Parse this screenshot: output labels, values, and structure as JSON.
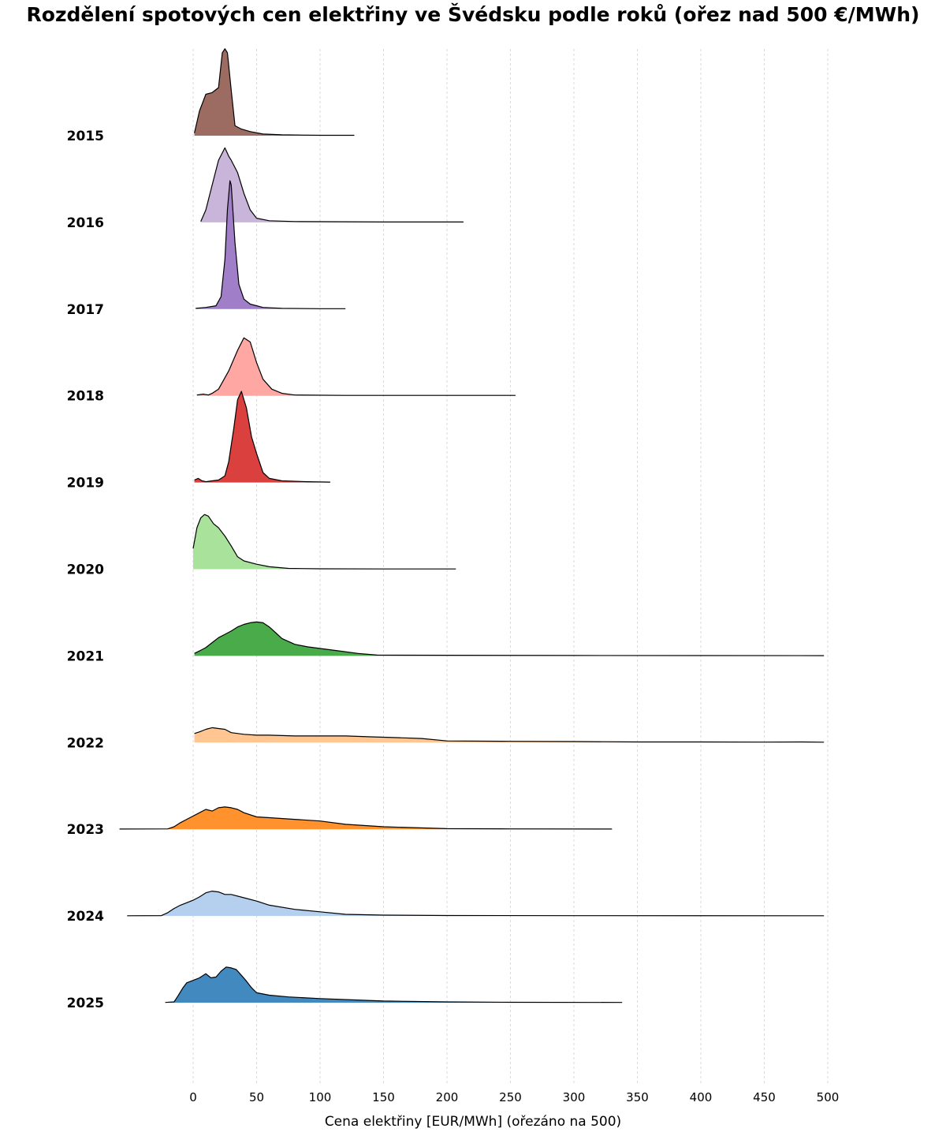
{
  "chart_data": {
    "type": "area",
    "title": "Rozdělení spotových cen elektřiny ve Švédsku podle roků (ořez nad 500 €/MWh)",
    "xlabel": "Cena elektřiny [EUR/MWh] (ořezáno na 500)",
    "ylabel": "",
    "xlim": [
      -60,
      500
    ],
    "xticks": [
      0,
      50,
      100,
      150,
      200,
      250,
      300,
      350,
      400,
      450,
      500
    ],
    "grid": "vertical dotted",
    "series": [
      {
        "name": "2015",
        "color": "#9c6b61",
        "x": [
          1,
          5,
          10,
          15,
          20,
          23,
          25,
          27,
          30,
          33,
          38,
          45,
          55,
          70,
          100,
          127
        ],
        "y": [
          0.03,
          0.3,
          0.5,
          0.52,
          0.58,
          1.0,
          1.05,
          1.0,
          0.55,
          0.12,
          0.08,
          0.05,
          0.02,
          0.01,
          0.005,
          0.005
        ]
      },
      {
        "name": "2016",
        "color": "#c8b5d9",
        "x": [
          6,
          10,
          15,
          20,
          25,
          28,
          30,
          35,
          40,
          45,
          50,
          60,
          80,
          150,
          213
        ],
        "y": [
          0.01,
          0.15,
          0.45,
          0.75,
          0.9,
          0.8,
          0.75,
          0.6,
          0.35,
          0.15,
          0.05,
          0.02,
          0.01,
          0.005,
          0.005
        ]
      },
      {
        "name": "2017",
        "color": "#a07fc8",
        "x": [
          2,
          10,
          18,
          22,
          25,
          27,
          29,
          30,
          33,
          36,
          40,
          45,
          55,
          70,
          100,
          120
        ],
        "y": [
          0.01,
          0.02,
          0.04,
          0.15,
          0.6,
          1.2,
          1.55,
          1.5,
          0.8,
          0.3,
          0.12,
          0.06,
          0.02,
          0.01,
          0.005,
          0.005
        ]
      },
      {
        "name": "2018",
        "color": "#ffa7a3",
        "x": [
          3,
          8,
          12,
          15,
          20,
          28,
          35,
          40,
          45,
          50,
          55,
          62,
          70,
          80,
          120,
          254
        ],
        "y": [
          0.01,
          0.02,
          0.01,
          0.03,
          0.08,
          0.3,
          0.55,
          0.7,
          0.65,
          0.4,
          0.2,
          0.08,
          0.03,
          0.01,
          0.005,
          0.005
        ]
      },
      {
        "name": "2019",
        "color": "#d9403e",
        "x": [
          1,
          4,
          7,
          10,
          15,
          20,
          25,
          28,
          32,
          35,
          38,
          42,
          46,
          50,
          55,
          60,
          70,
          90,
          108
        ],
        "y": [
          0.03,
          0.05,
          0.02,
          0.01,
          0.02,
          0.03,
          0.08,
          0.25,
          0.65,
          1.0,
          1.1,
          0.9,
          0.55,
          0.35,
          0.12,
          0.05,
          0.02,
          0.01,
          0.005
        ]
      },
      {
        "name": "2020",
        "color": "#a8e29b",
        "x": [
          0,
          3,
          6,
          9,
          12,
          16,
          20,
          25,
          30,
          35,
          40,
          50,
          60,
          75,
          100,
          150,
          207
        ],
        "y": [
          0.25,
          0.5,
          0.62,
          0.66,
          0.64,
          0.55,
          0.5,
          0.4,
          0.28,
          0.15,
          0.1,
          0.06,
          0.03,
          0.01,
          0.005,
          0.003,
          0.003
        ]
      },
      {
        "name": "2021",
        "color": "#4aab4a",
        "x": [
          1,
          5,
          10,
          15,
          20,
          25,
          30,
          35,
          40,
          45,
          50,
          55,
          60,
          65,
          70,
          80,
          90,
          100,
          115,
          130,
          145,
          200,
          300,
          497
        ],
        "y": [
          0.03,
          0.06,
          0.1,
          0.16,
          0.22,
          0.26,
          0.3,
          0.35,
          0.38,
          0.4,
          0.41,
          0.4,
          0.35,
          0.28,
          0.21,
          0.14,
          0.11,
          0.09,
          0.06,
          0.03,
          0.01,
          0.008,
          0.005,
          0.003
        ]
      },
      {
        "name": "2022",
        "color": "#ffc692",
        "x": [
          1,
          5,
          10,
          15,
          20,
          25,
          30,
          40,
          50,
          60,
          80,
          100,
          120,
          140,
          160,
          180,
          200,
          250,
          300,
          350,
          400,
          450,
          480,
          497
        ],
        "y": [
          0.11,
          0.13,
          0.16,
          0.18,
          0.17,
          0.16,
          0.12,
          0.1,
          0.09,
          0.09,
          0.08,
          0.08,
          0.08,
          0.07,
          0.06,
          0.05,
          0.02,
          0.015,
          0.012,
          0.008,
          0.008,
          0.006,
          0.008,
          0.005
        ]
      },
      {
        "name": "2023",
        "color": "#ff922d",
        "x": [
          -58,
          -20,
          -15,
          -10,
          -5,
          0,
          5,
          10,
          15,
          20,
          25,
          30,
          35,
          40,
          50,
          60,
          80,
          100,
          120,
          150,
          200,
          250,
          330
        ],
        "y": [
          0.003,
          0.005,
          0.03,
          0.08,
          0.12,
          0.16,
          0.2,
          0.24,
          0.22,
          0.26,
          0.27,
          0.26,
          0.24,
          0.2,
          0.15,
          0.14,
          0.12,
          0.1,
          0.06,
          0.03,
          0.008,
          0.005,
          0.003
        ]
      },
      {
        "name": "2024",
        "color": "#b5cfee",
        "x": [
          -52,
          -25,
          -20,
          -15,
          -10,
          -5,
          0,
          5,
          10,
          15,
          20,
          25,
          30,
          40,
          50,
          60,
          80,
          100,
          120,
          150,
          200,
          300,
          497
        ],
        "y": [
          0.003,
          0.005,
          0.04,
          0.09,
          0.13,
          0.16,
          0.19,
          0.23,
          0.28,
          0.3,
          0.29,
          0.26,
          0.26,
          0.22,
          0.18,
          0.13,
          0.08,
          0.05,
          0.02,
          0.01,
          0.006,
          0.004,
          0.003
        ]
      },
      {
        "name": "2025",
        "color": "#4289c0",
        "x": [
          -22,
          -15,
          -12,
          -8,
          -5,
          0,
          5,
          10,
          14,
          18,
          22,
          26,
          30,
          34,
          38,
          42,
          46,
          50,
          60,
          75,
          100,
          150,
          200,
          250,
          338
        ],
        "y": [
          0.003,
          0.01,
          0.08,
          0.18,
          0.24,
          0.27,
          0.3,
          0.35,
          0.3,
          0.31,
          0.38,
          0.43,
          0.42,
          0.4,
          0.33,
          0.26,
          0.18,
          0.12,
          0.09,
          0.07,
          0.05,
          0.02,
          0.01,
          0.005,
          0.003
        ]
      }
    ]
  }
}
